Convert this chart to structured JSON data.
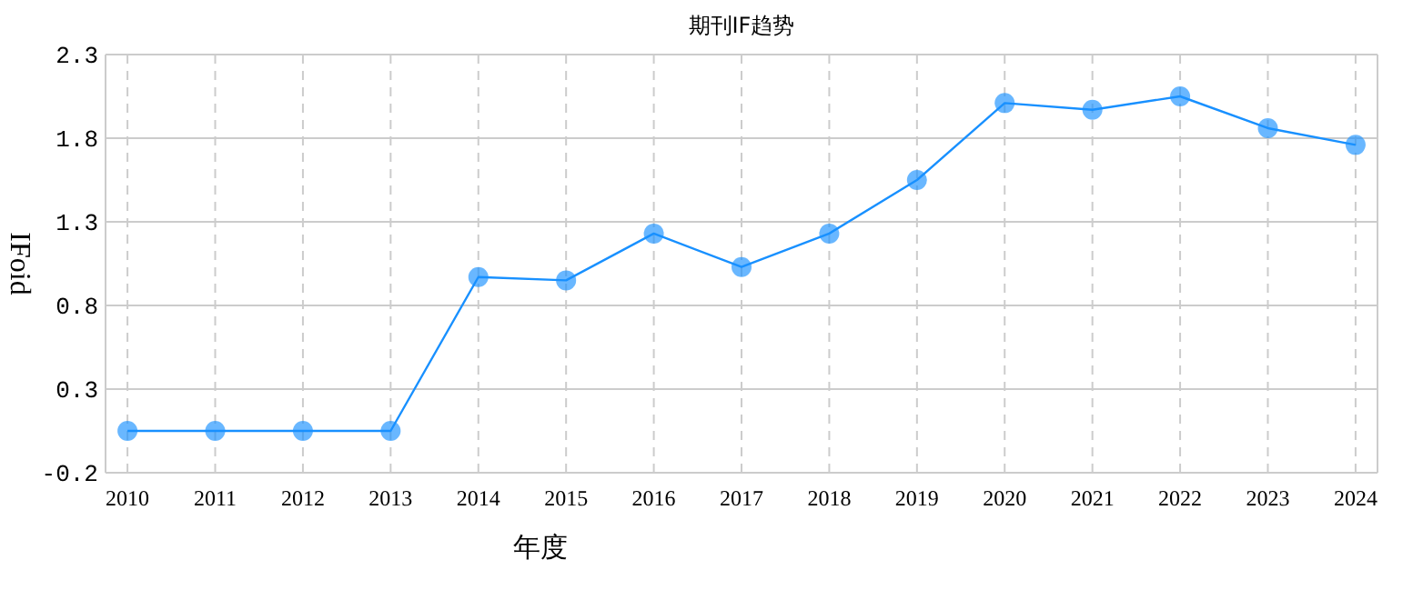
{
  "chart_data": {
    "type": "line",
    "title": "期刊IF趋势",
    "xlabel": "年度",
    "ylabel": "IFoid",
    "categories": [
      "2010",
      "2011",
      "2012",
      "2013",
      "2014",
      "2015",
      "2016",
      "2017",
      "2018",
      "2019",
      "2020",
      "2021",
      "2022",
      "2023",
      "2024"
    ],
    "series": [
      {
        "color": "#1890ff",
        "values": [
          0.05,
          0.05,
          0.05,
          0.05,
          0.97,
          0.95,
          1.23,
          1.03,
          1.23,
          1.55,
          2.01,
          1.97,
          2.05,
          1.86,
          1.76
        ]
      }
    ],
    "ylim": [
      -0.2,
      2.3
    ],
    "yticks": [
      -0.2,
      0.3,
      0.8,
      1.3,
      1.8,
      2.3
    ],
    "grid": true,
    "marker": "circle",
    "line_style": "solid"
  }
}
